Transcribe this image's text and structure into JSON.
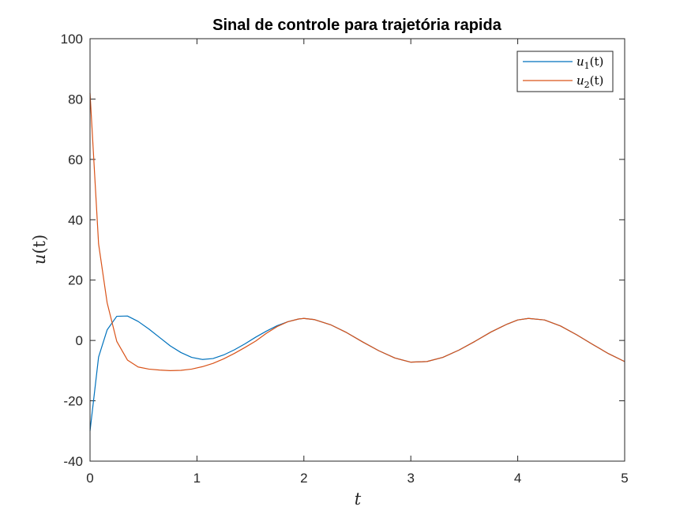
{
  "chart_data": {
    "type": "line",
    "title": "Sinal de controle para trajetória rapida",
    "xlabel": "t",
    "ylabel": "u(t)",
    "xlim": [
      0,
      5
    ],
    "ylim": [
      -40,
      100
    ],
    "xticks": [
      0,
      1,
      2,
      3,
      4,
      5
    ],
    "xtick_labels": [
      "0",
      "1",
      "2",
      "3",
      "4",
      "5"
    ],
    "yticks": [
      -40,
      -20,
      0,
      20,
      40,
      60,
      80,
      100
    ],
    "ytick_labels": [
      "-40",
      "-20",
      "0",
      "20",
      "40",
      "60",
      "80",
      "100"
    ],
    "grid": false,
    "legend_position": "top-right",
    "x": [
      0,
      0.08,
      0.16,
      0.25,
      0.35,
      0.45,
      0.55,
      0.65,
      0.75,
      0.85,
      0.95,
      1.05,
      1.15,
      1.25,
      1.35,
      1.45,
      1.55,
      1.65,
      1.75,
      1.85,
      1.95,
      2.0,
      2.1,
      2.25,
      2.4,
      2.55,
      2.7,
      2.85,
      3.0,
      3.15,
      3.3,
      3.45,
      3.6,
      3.75,
      3.9,
      4.0,
      4.1,
      4.25,
      4.4,
      4.55,
      4.7,
      4.85,
      5.0
    ],
    "series": [
      {
        "name": "u_1(t)",
        "color": "#0072BD",
        "values": [
          -30,
          -5.5,
          3.5,
          8.0,
          8.1,
          6.3,
          3.8,
          1.0,
          -1.8,
          -4.0,
          -5.6,
          -6.3,
          -6.0,
          -4.8,
          -3.1,
          -1.1,
          1.1,
          3.1,
          4.9,
          6.2,
          7.1,
          7.3,
          6.9,
          5.2,
          2.6,
          -0.5,
          -3.4,
          -5.8,
          -7.2,
          -7.0,
          -5.6,
          -3.2,
          -0.3,
          2.8,
          5.4,
          6.8,
          7.3,
          6.8,
          4.8,
          1.9,
          -1.3,
          -4.4,
          -7.0
        ]
      },
      {
        "name": "u_2(t)",
        "color": "#D95319",
        "values": [
          82,
          32,
          12.5,
          -0.3,
          -6.5,
          -8.8,
          -9.5,
          -9.8,
          -10.0,
          -9.9,
          -9.5,
          -8.7,
          -7.6,
          -6.1,
          -4.3,
          -2.3,
          -0.2,
          2.4,
          4.6,
          6.2,
          7.1,
          7.3,
          6.9,
          5.2,
          2.6,
          -0.5,
          -3.4,
          -5.8,
          -7.2,
          -7.0,
          -5.6,
          -3.2,
          -0.3,
          2.8,
          5.4,
          6.8,
          7.3,
          6.8,
          4.8,
          1.9,
          -1.3,
          -4.4,
          -7.0
        ]
      }
    ]
  },
  "legend": {
    "u1_base": "u",
    "u1_sub": "1",
    "u1_arg": "(t)",
    "u2_base": "u",
    "u2_sub": "2",
    "u2_arg": "(t)"
  },
  "axes": {
    "xlabel": "t",
    "ylabel_base": "u",
    "ylabel_arg": "(t)"
  }
}
